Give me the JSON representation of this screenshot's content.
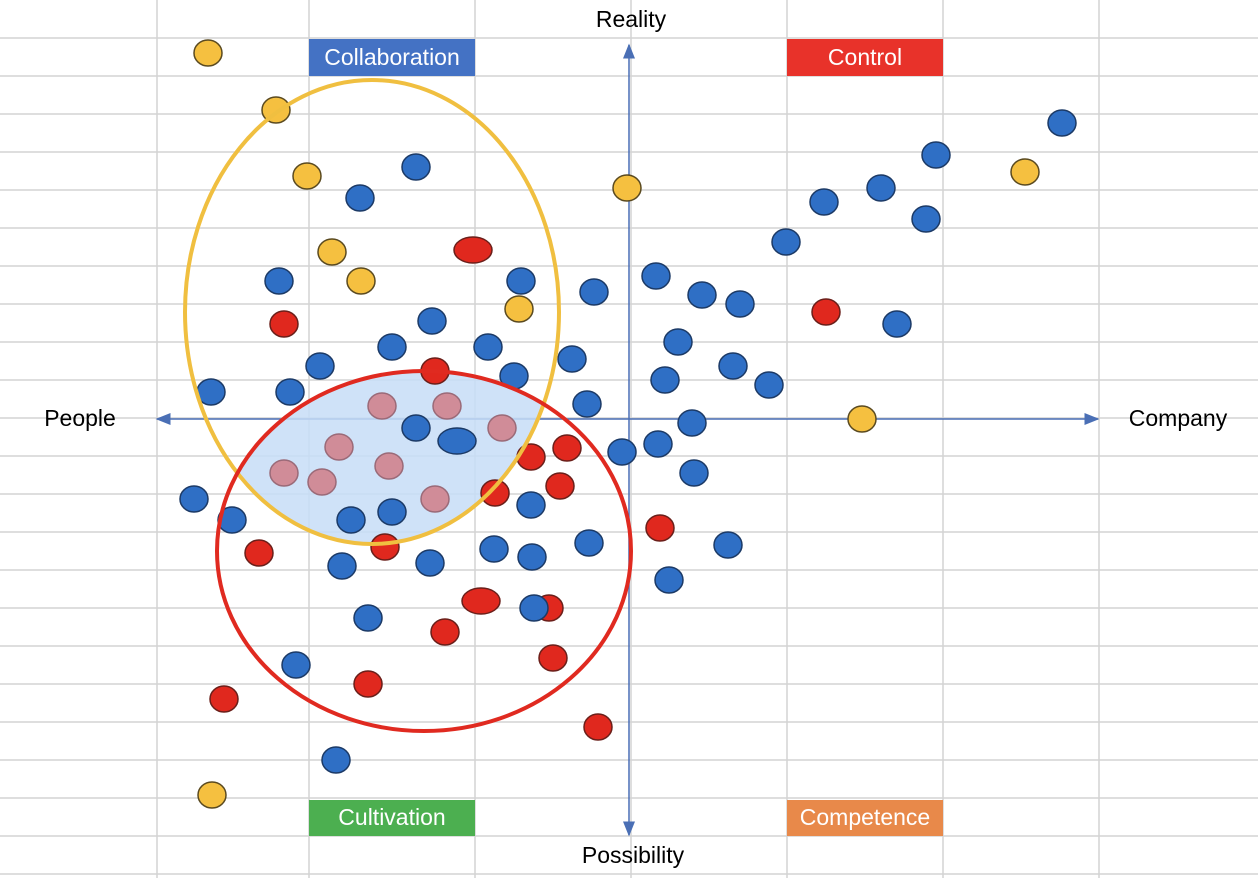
{
  "axes": {
    "top": "Reality",
    "bottom": "Possibility",
    "left": "People",
    "right": "Company"
  },
  "quadrants": {
    "top_left": "Collaboration",
    "top_right": "Control",
    "bottom_left": "Cultivation",
    "bottom_right": "Competence"
  }
}
